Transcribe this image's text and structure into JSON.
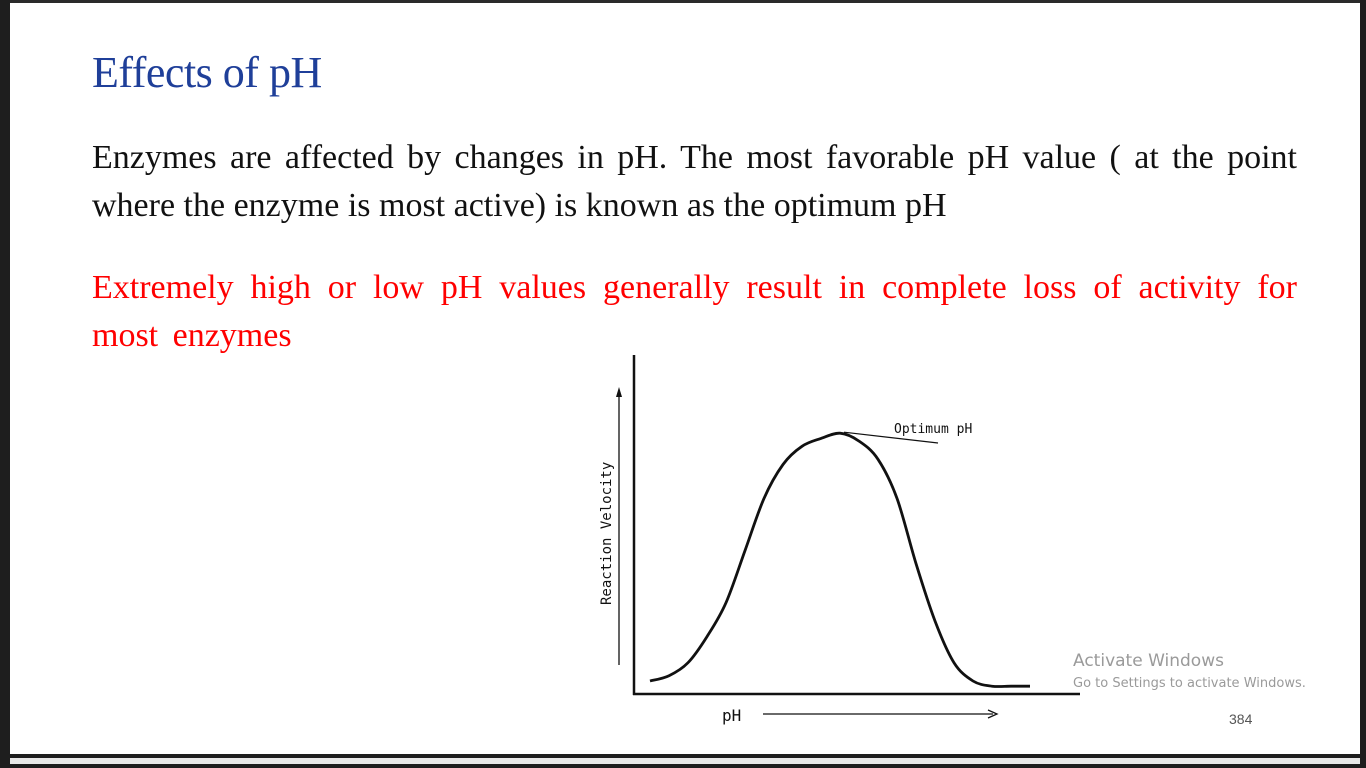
{
  "slide": {
    "title": "Effects of pH",
    "paragraph_1": "Enzymes are affected by changes in pH. The most favorable pH value ( at the point where the enzyme is most active) is known as the optimum pH",
    "paragraph_2": "Extremely high or low pH values generally result in complete loss of activity for most enzymes",
    "page_number": "384"
  },
  "chart_data": {
    "type": "line",
    "xlabel": "pH",
    "ylabel": "Reaction Velocity",
    "annotation": "Optimum pH",
    "grid": false,
    "legend": "none",
    "series": [
      {
        "x": [
          0,
          0.5,
          1,
          1.5,
          2,
          2.5,
          3,
          3.5,
          4,
          4.5,
          5,
          5.5,
          6,
          6.5,
          7,
          7.5,
          8,
          8.5,
          9,
          9.5,
          10
        ],
        "y": [
          0.05,
          0.07,
          0.12,
          0.22,
          0.35,
          0.55,
          0.75,
          0.88,
          0.95,
          0.98,
          1.0,
          0.97,
          0.9,
          0.75,
          0.5,
          0.28,
          0.12,
          0.05,
          0.03,
          0.03,
          0.03
        ]
      }
    ],
    "xlim": [
      0,
      10
    ],
    "ylim": [
      0,
      1.3
    ]
  },
  "watermark": {
    "title": "Activate Windows",
    "subtitle": "Go to Settings to activate Windows."
  },
  "colors": {
    "title": "#1f3f99",
    "body_text": "#111111",
    "highlight_text": "#ff0000"
  }
}
